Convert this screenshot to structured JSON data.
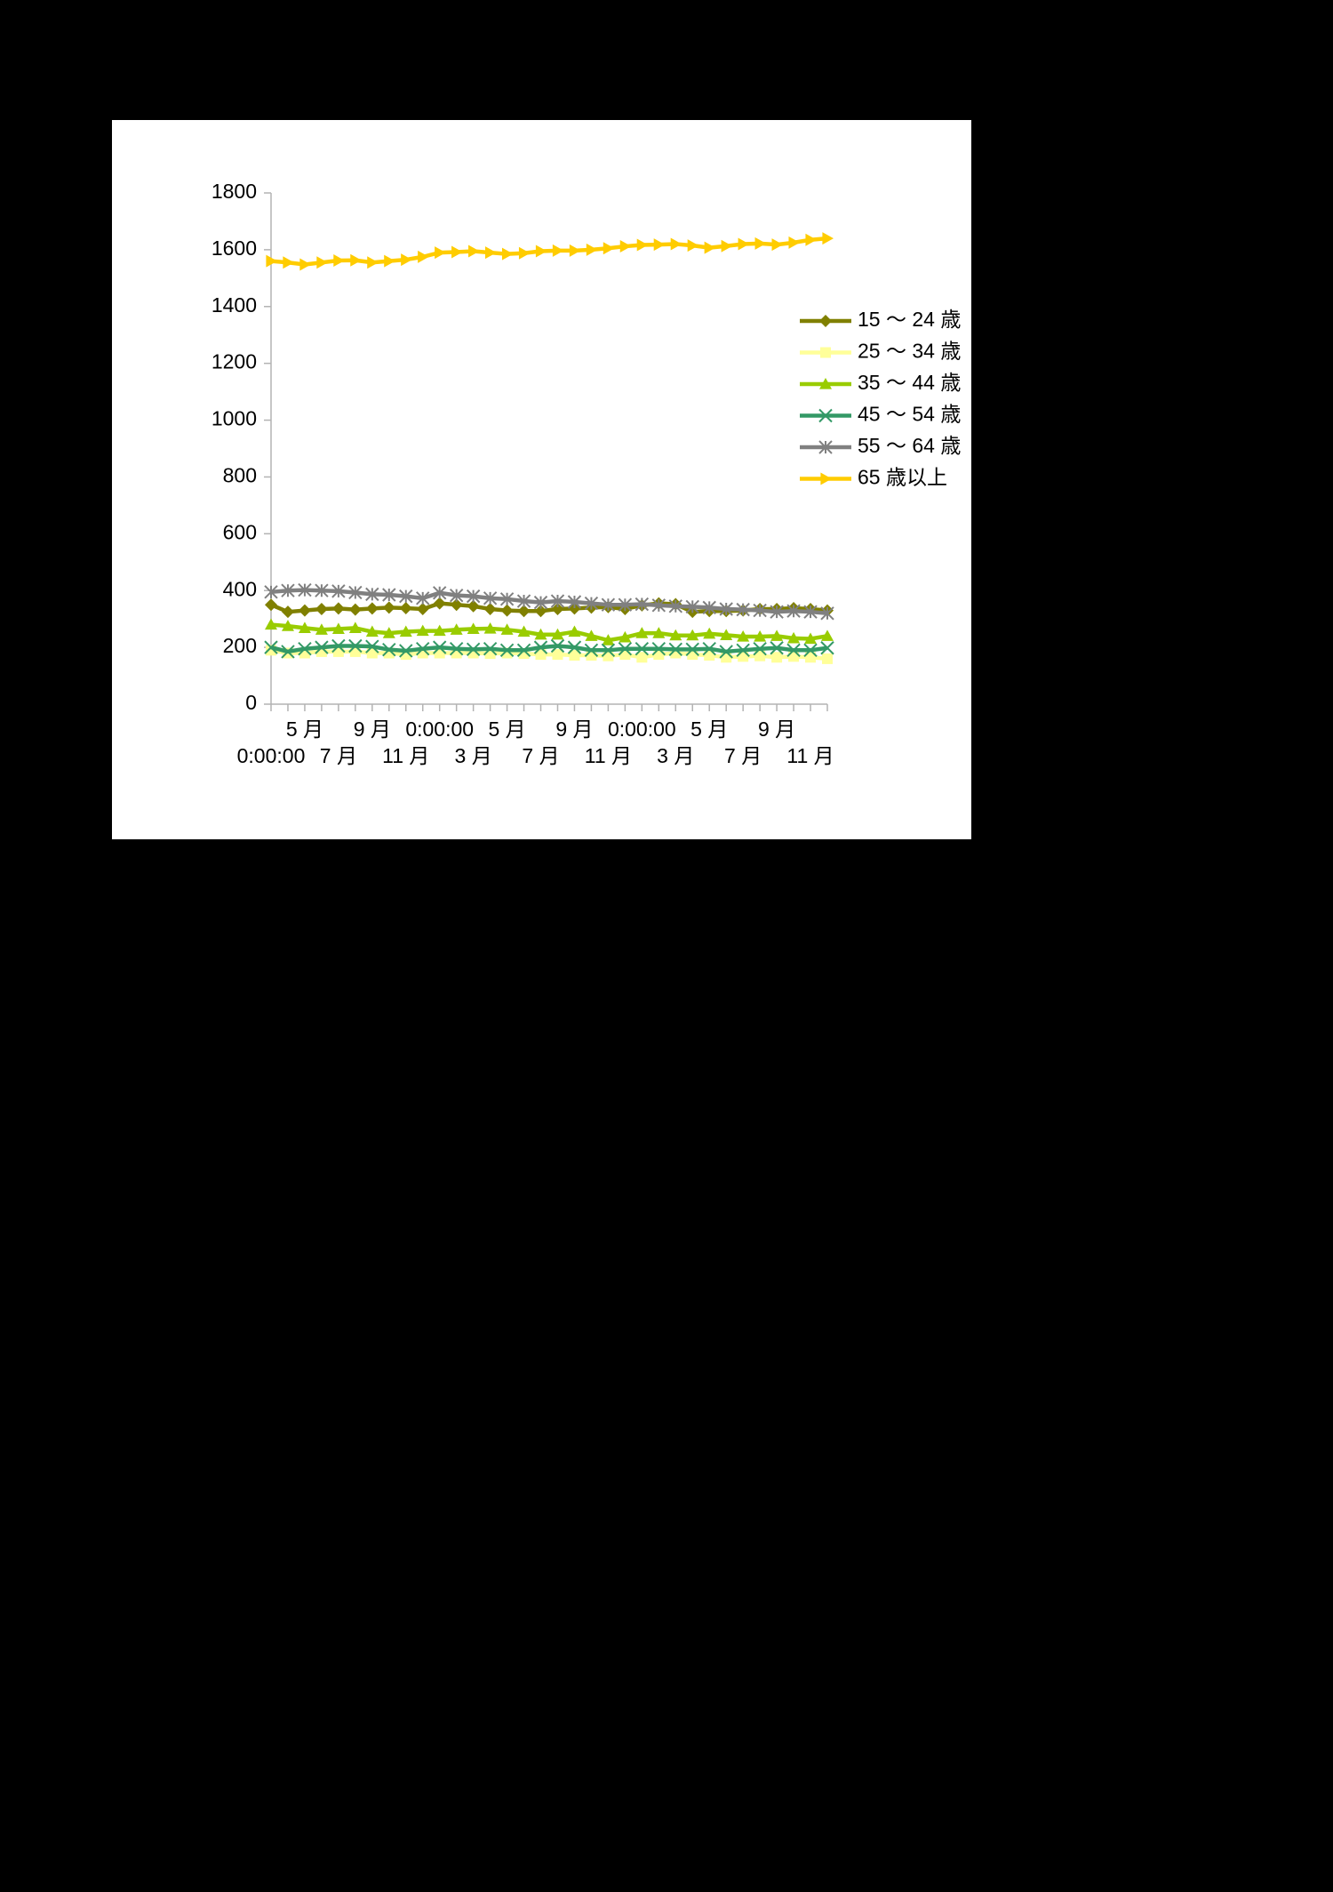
{
  "chart_data": {
    "type": "line",
    "categories": [
      "0:00:00",
      null,
      "5 月",
      null,
      "7 月",
      null,
      "9 月",
      null,
      "11 月",
      null,
      "0:00:00",
      null,
      "3 月",
      null,
      "5 月",
      null,
      "7 月",
      null,
      "9 月",
      null,
      "11 月",
      null,
      "0:00:00",
      null,
      "3 月",
      null,
      "5 月",
      null,
      "7 月",
      null,
      "9 月",
      null,
      "11 月",
      null
    ],
    "series": [
      {
        "name": "15 〜 24 歳",
        "color": "#808000",
        "marker": "diamond",
        "values": [
          350,
          325,
          330,
          335,
          337,
          333,
          337,
          340,
          338,
          335,
          355,
          350,
          345,
          335,
          330,
          328,
          328,
          335,
          337,
          340,
          342,
          335,
          348,
          355,
          352,
          325,
          328,
          328,
          330,
          335,
          335,
          338,
          335,
          330
        ]
      },
      {
        "name": "25 〜 34 歳",
        "color": "#ffff99",
        "marker": "square",
        "values": [
          190,
          180,
          180,
          185,
          185,
          185,
          180,
          180,
          175,
          180,
          180,
          180,
          180,
          178,
          180,
          178,
          175,
          175,
          172,
          172,
          170,
          175,
          165,
          175,
          180,
          175,
          172,
          165,
          168,
          170,
          165,
          168,
          165,
          160
        ]
      },
      {
        "name": "35 〜 44 歳",
        "color": "#99cc00",
        "marker": "triangle",
        "values": [
          280,
          275,
          268,
          262,
          265,
          268,
          255,
          250,
          255,
          258,
          258,
          262,
          265,
          266,
          262,
          255,
          245,
          245,
          255,
          240,
          225,
          235,
          250,
          250,
          242,
          242,
          248,
          243,
          238,
          238,
          240,
          232,
          230,
          240
        ]
      },
      {
        "name": "45 〜 54 歳",
        "color": "#339966",
        "marker": "x",
        "values": [
          200,
          185,
          195,
          200,
          205,
          205,
          203,
          192,
          188,
          195,
          200,
          195,
          193,
          195,
          190,
          190,
          200,
          205,
          200,
          190,
          190,
          195,
          195,
          195,
          193,
          193,
          195,
          185,
          190,
          195,
          198,
          190,
          190,
          198
        ]
      },
      {
        "name": "55 〜 64 歳",
        "color": "#808080",
        "marker": "star",
        "values": [
          395,
          400,
          402,
          400,
          398,
          393,
          387,
          385,
          380,
          373,
          392,
          383,
          380,
          373,
          370,
          363,
          358,
          363,
          360,
          355,
          350,
          350,
          352,
          348,
          345,
          343,
          340,
          335,
          333,
          330,
          325,
          328,
          325,
          320
        ]
      },
      {
        "name": "65 歳以上",
        "color": "#ffcc00",
        "marker": "arrow",
        "values": [
          1560,
          1555,
          1548,
          1555,
          1562,
          1563,
          1555,
          1560,
          1565,
          1575,
          1590,
          1592,
          1595,
          1590,
          1585,
          1588,
          1595,
          1597,
          1597,
          1600,
          1605,
          1612,
          1617,
          1618,
          1620,
          1615,
          1607,
          1613,
          1620,
          1622,
          1618,
          1625,
          1635,
          1640
        ]
      }
    ],
    "ylim": [
      0,
      1800
    ],
    "yticks": [
      0,
      200,
      400,
      600,
      800,
      1000,
      1200,
      1400,
      1600,
      1800
    ],
    "grid": false,
    "legend": "right"
  }
}
